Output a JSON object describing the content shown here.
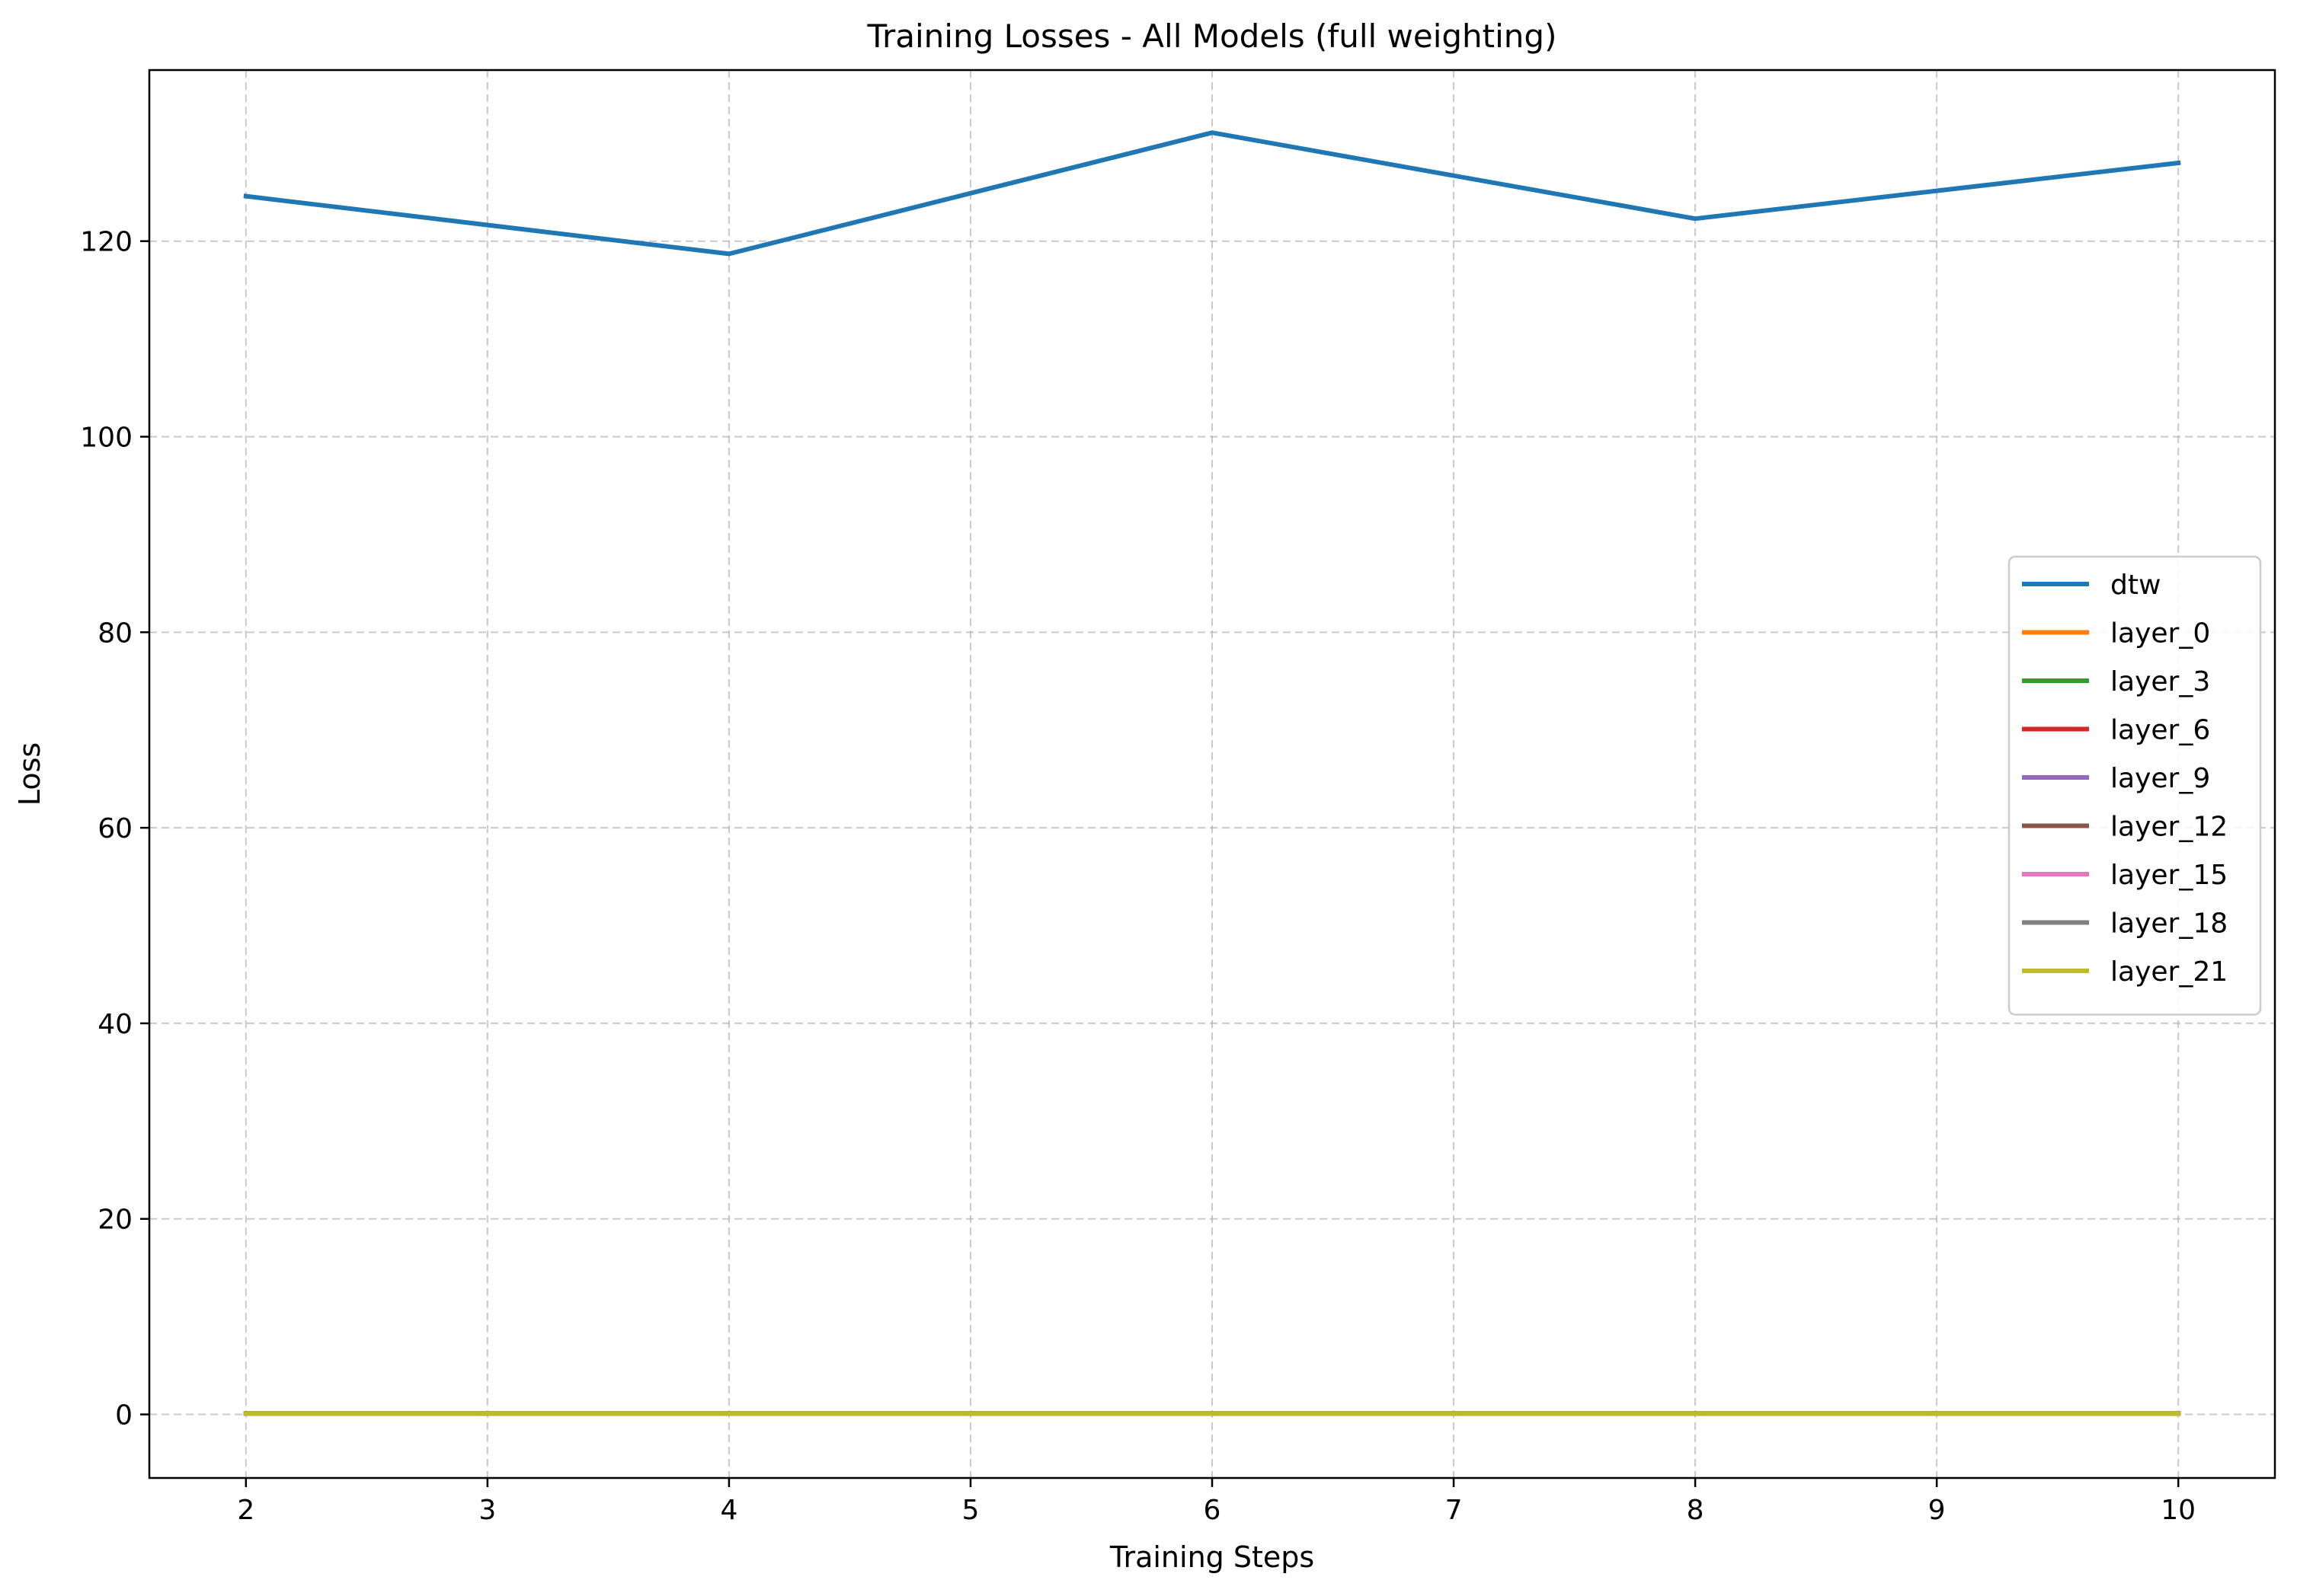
{
  "chart_data": {
    "type": "line",
    "title": "Training Losses - All Models (full weighting)",
    "xlabel": "Training Steps",
    "ylabel": "Loss",
    "x": [
      2,
      4,
      6,
      8,
      10
    ],
    "xlim": [
      1.6,
      10.4
    ],
    "ylim": [
      -6.5,
      137.5
    ],
    "xticks": [
      2,
      3,
      4,
      5,
      6,
      7,
      8,
      9,
      10
    ],
    "yticks": [
      0,
      20,
      40,
      60,
      80,
      100,
      120
    ],
    "grid": true,
    "legend_position": "center-right",
    "series": [
      {
        "name": "dtw",
        "color": "#1f77b4",
        "values": [
          124.6,
          118.7,
          131.1,
          122.3,
          128.0
        ]
      },
      {
        "name": "layer_0",
        "color": "#ff7f0e",
        "values": [
          0.1,
          0.1,
          0.1,
          0.1,
          0.1
        ]
      },
      {
        "name": "layer_3",
        "color": "#2ca02c",
        "values": [
          0.1,
          0.1,
          0.1,
          0.1,
          0.1
        ]
      },
      {
        "name": "layer_6",
        "color": "#d62728",
        "values": [
          0.1,
          0.1,
          0.1,
          0.1,
          0.1
        ]
      },
      {
        "name": "layer_9",
        "color": "#9467bd",
        "values": [
          0.1,
          0.1,
          0.1,
          0.1,
          0.1
        ]
      },
      {
        "name": "layer_12",
        "color": "#8c564b",
        "values": [
          0.1,
          0.1,
          0.1,
          0.1,
          0.1
        ]
      },
      {
        "name": "layer_15",
        "color": "#e377c2",
        "values": [
          0.1,
          0.1,
          0.1,
          0.1,
          0.1
        ]
      },
      {
        "name": "layer_18",
        "color": "#7f7f7f",
        "values": [
          0.1,
          0.1,
          0.1,
          0.1,
          0.1
        ]
      },
      {
        "name": "layer_21",
        "color": "#bcbd22",
        "values": [
          0.1,
          0.1,
          0.1,
          0.1,
          0.1
        ]
      }
    ]
  }
}
